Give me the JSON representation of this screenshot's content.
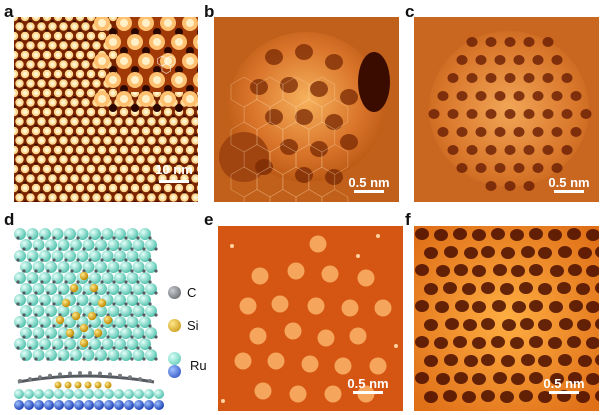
{
  "panels": {
    "a": {
      "letter": "a",
      "scale": "10 nm"
    },
    "b": {
      "letter": "b",
      "scale": "0.5 nm"
    },
    "c": {
      "letter": "c",
      "scale": "0.5 nm"
    },
    "d": {
      "letter": "d"
    },
    "e": {
      "letter": "e",
      "scale": "0.5 nm"
    },
    "f": {
      "letter": "f",
      "scale": "0.5 nm"
    }
  },
  "legend": [
    {
      "label": "C",
      "color": "#6f7378"
    },
    {
      "label": "Si",
      "color": "#e3b21a"
    },
    {
      "label": "Ru",
      "color": "#7fe0cf"
    },
    {
      "label": "",
      "color": "#2f5fd6"
    }
  ],
  "colors": {
    "stm_dark": "#6a1c00",
    "stm_mid": "#c8561a",
    "stm_bright": "#ffd27a",
    "afm_bg": "#d65a14",
    "afm_spot": "#f6a45a"
  }
}
